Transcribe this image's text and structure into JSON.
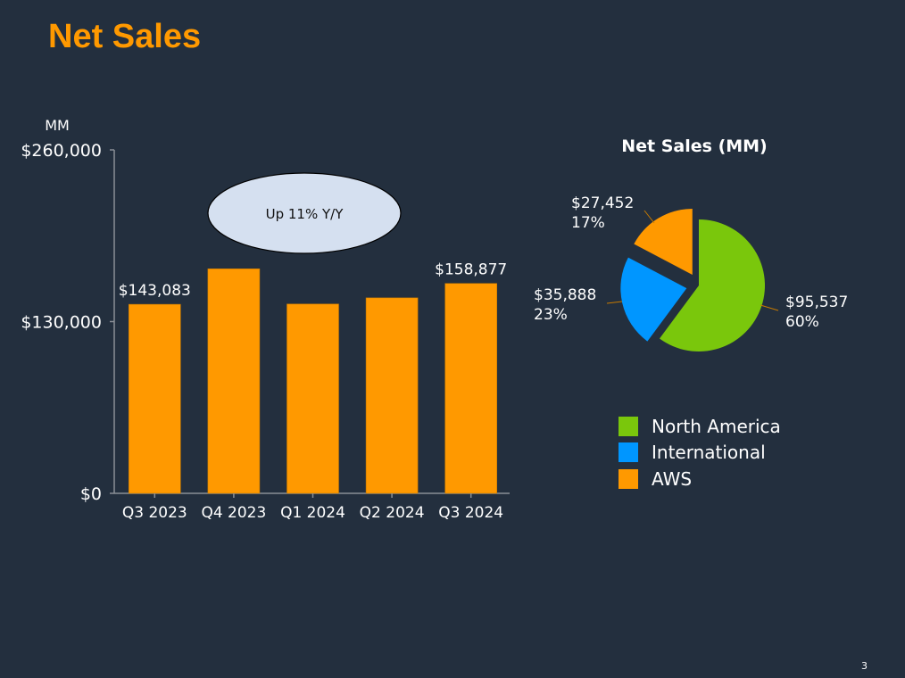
{
  "slide": {
    "title": "Net Sales",
    "page_number": "3"
  },
  "chart_data": [
    {
      "type": "bar",
      "title": "",
      "ylabel": "MM",
      "xlabel": "",
      "categories": [
        "Q3 2023",
        "Q4 2023",
        "Q1 2024",
        "Q2 2024",
        "Q3 2024"
      ],
      "values": [
        143083,
        169961,
        143313,
        147977,
        158877
      ],
      "data_labels": [
        "$143,083",
        "",
        "",
        "",
        "$158,877"
      ],
      "ylim": [
        0,
        260000
      ],
      "yticks": [
        0,
        130000,
        260000
      ],
      "ytick_labels": [
        "$0",
        "$130,000",
        "$260,000"
      ],
      "bar_color": "#ff9900",
      "annotation": "Up 11% Y/Y",
      "grid": false
    },
    {
      "type": "pie",
      "title": "Net Sales (MM)",
      "slices": [
        {
          "name": "North America",
          "value": 95537,
          "label": "$95,537",
          "percent": "60%",
          "color": "#7ac70c"
        },
        {
          "name": "International",
          "value": 35888,
          "label": "$35,888",
          "percent": "23%",
          "color": "#0096ff"
        },
        {
          "name": "AWS",
          "value": 27452,
          "label": "$27,452",
          "percent": "17%",
          "color": "#ff9900"
        }
      ],
      "legend": "bottom"
    }
  ]
}
